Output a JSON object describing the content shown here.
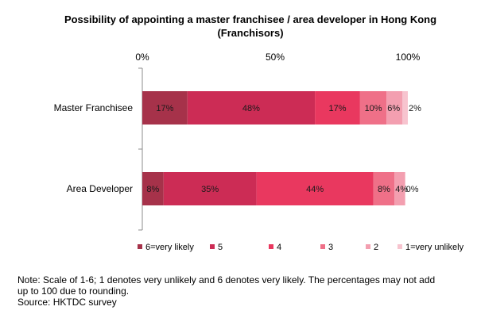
{
  "chart_data": {
    "type": "bar",
    "orientation": "horizontal",
    "stacked": true,
    "title": "Possibility  of appointing  a master franchisee  / area developer  in Hong Kong",
    "subtitle": "(Franchisors)",
    "categories": [
      "Master Franchisee",
      "Area Developer"
    ],
    "xlim": [
      0,
      100
    ],
    "x_ticks": [
      "0%",
      "50%",
      "100%"
    ],
    "grid": false,
    "legend_position": "bottom",
    "series": [
      {
        "name": "6=very likely",
        "values": [
          17,
          8
        ],
        "labels": [
          "17%",
          "8%"
        ],
        "color": "#a6324a"
      },
      {
        "name": "5",
        "values": [
          48,
          35
        ],
        "labels": [
          "48%",
          "35%"
        ],
        "color": "#cc2c55"
      },
      {
        "name": "4",
        "values": [
          17,
          44
        ],
        "labels": [
          "17%",
          "44%"
        ],
        "color": "#e9385f"
      },
      {
        "name": "3",
        "values": [
          10,
          8
        ],
        "labels": [
          "10%",
          "8%"
        ],
        "color": "#ef7088"
      },
      {
        "name": "2",
        "values": [
          6,
          4
        ],
        "labels": [
          "6%",
          "4%"
        ],
        "color": "#f39fb0"
      },
      {
        "name": "1=very unlikely",
        "values": [
          2,
          0
        ],
        "labels": [
          "2%",
          "0%"
        ],
        "color": "#f7c4cf"
      }
    ]
  },
  "note": {
    "line1": "Note: Scale of 1-6; 1 denotes very unlikely and 6 denotes very likely. The percentages may not add",
    "line2": "up to 100 due to rounding.",
    "line3": "Source: HKTDC survey"
  }
}
